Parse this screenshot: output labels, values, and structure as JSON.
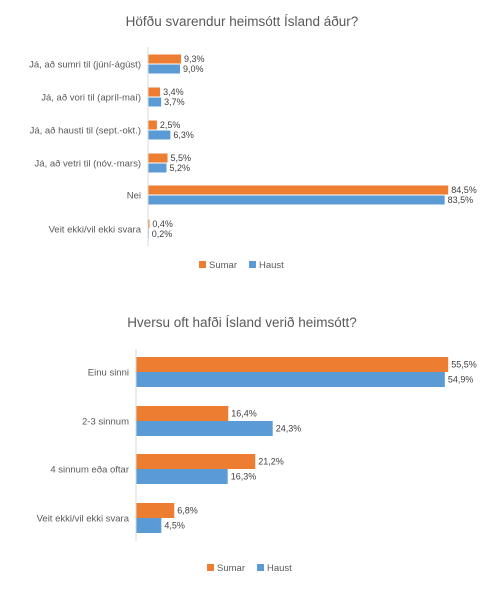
{
  "chart_data": [
    {
      "type": "bar",
      "orientation": "horizontal",
      "title": "Höfðu svarendur heimsótt Ísland áður?",
      "categories": [
        "Já, að sumri til (júní-ágúst)",
        "Já, að vori til (apríl-maí)",
        "Já, að hausti til (sept.-okt.)",
        "Já, að vetri til (nóv.-mars)",
        "Nei",
        "Veit ekki/vil ekki svara"
      ],
      "series": [
        {
          "name": "Sumar",
          "values": [
            9.3,
            3.4,
            2.5,
            5.5,
            84.5,
            0.4
          ],
          "labels": [
            "9,3%",
            "3,4%",
            "2,5%",
            "5,5%",
            "84,5%",
            "0,4%"
          ],
          "color": "#ED7D31"
        },
        {
          "name": "Haust",
          "values": [
            9.0,
            3.7,
            6.3,
            5.2,
            83.5,
            0.2
          ],
          "labels": [
            "9,0%",
            "3,7%",
            "6,3%",
            "5,2%",
            "83,5%",
            "0,2%"
          ],
          "color": "#5B9BD5"
        }
      ],
      "xlim": [
        0,
        85
      ],
      "legend": "bottom",
      "grid": false
    },
    {
      "type": "bar",
      "orientation": "horizontal",
      "title": "Hversu oft hafði Ísland verið heimsótt?",
      "categories": [
        "Einu sinni",
        "2-3 sinnum",
        "4 sinnum eða oftar",
        "Veit ekki/vil ekki svara"
      ],
      "series": [
        {
          "name": "Sumar",
          "values": [
            55.5,
            16.4,
            21.2,
            6.8
          ],
          "labels": [
            "55,5%",
            "16,4%",
            "21,2%",
            "6,8%"
          ],
          "color": "#ED7D31"
        },
        {
          "name": "Haust",
          "values": [
            54.9,
            24.3,
            16.3,
            4.5
          ],
          "labels": [
            "54,9%",
            "24,3%",
            "16,3%",
            "4,5%"
          ],
          "color": "#5B9BD5"
        }
      ],
      "xlim": [
        0,
        56
      ],
      "legend": "bottom",
      "grid": false
    }
  ]
}
